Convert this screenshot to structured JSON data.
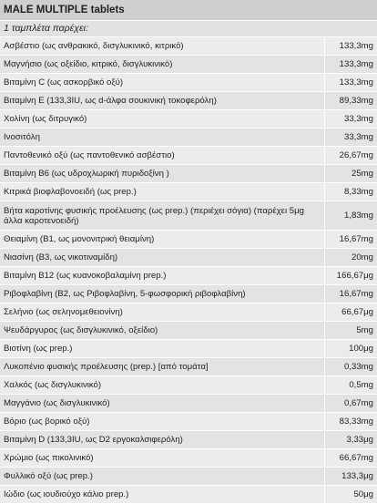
{
  "title": "MALE MULTIPLE tablets",
  "subtitle": "1 ταμπλέτα  παρέχει:",
  "rows": [
    {
      "name": "Ασβέστιο (ως ανθρακικό, δισγλυκινικό, κιτρικό)",
      "value": "133,3mg"
    },
    {
      "name": "Μαγνήσιο (ως οξείδιο, κιτρικό, δισγλυκινικό)",
      "value": "133,3mg"
    },
    {
      "name": "Βιταμίνη C (ως ασκορβικό οξύ)",
      "value": "133,3mg"
    },
    {
      "name": "Βιταμίνη Ε (133,3IU, ως d-άλφα σουκινική τοκοφερόλη)",
      "value": "89,33mg"
    },
    {
      "name": "Χολίνη (ως διτρυγικό)",
      "value": "33,3mg"
    },
    {
      "name": "Ινοσιτόλη",
      "value": "33,3mg"
    },
    {
      "name": "Παντοθενικό οξύ (ως παντοθενικό ασβέστιο)",
      "value": "26,67mg"
    },
    {
      "name": "Βιταμίνη Β6 (ως υδροχλωρική πυριδοξίνη )",
      "value": "25mg"
    },
    {
      "name": "Κιτρικά βιοφλαβονοειδή (ως prep.)",
      "value": "8,33mg"
    },
    {
      "name": "Βήτα καροτίνης φυσικής προέλευσης (ως prep.) (περιέχει σόγια) (παρέχει 5μg άλλα καροτενοειδή)",
      "value": "1,83mg"
    },
    {
      "name": "Θειαμίνη (Β1, ως μονονιτρική θειαμίνη)",
      "value": "16,67mg"
    },
    {
      "name": "Νιασίνη (Β3, ως νικοτιναμίδη)",
      "value": "20mg"
    },
    {
      "name": "Βιταμίνη Β12 (ως κυανοκοβαλαμίνη prep.)",
      "value": "166,67μg"
    },
    {
      "name": "Ριβοφλαβίνη (Β2, ως Ριβοφλαβίνη, 5-φωσφορική ριβοφλαβίνη)",
      "value": "16,67mg"
    },
    {
      "name": "Σελήνιο (ως σεληνομεθειονίνη)",
      "value": "66,67μg"
    },
    {
      "name": "Ψευδάργυρος (ως δισγλυκινικό, οξείδιο)",
      "value": "5mg"
    },
    {
      "name": "Βιοτίνη (ως prep.)",
      "value": "100μg"
    },
    {
      "name": "Λυκοπένιο φυσικής προέλευσης (prep.) [από τομάτα]",
      "value": "0,33mg"
    },
    {
      "name": "Χαλκός (ως δισγλυκινικό)",
      "value": "0,5mg"
    },
    {
      "name": "Μαγγάνιο (ως δισγλυκινικό)",
      "value": "0,67mg"
    },
    {
      "name": "Βόριο (ως βορικό οξύ)",
      "value": "83,33mg"
    },
    {
      "name": "Βιταμίνη D (133,3IU, ως D2 εργοκαλσιφερόλη)",
      "value": "3,33μg"
    },
    {
      "name": "Χρώμιο (ως πικολινικό)",
      "value": "66,67mg"
    },
    {
      "name": "Φυλλικό οξύ (ως prep.)",
      "value": "133,3μg"
    },
    {
      "name": "Ιώδιο (ως ιουδιούχο κάλιο prep.)",
      "value": "50μg"
    }
  ]
}
